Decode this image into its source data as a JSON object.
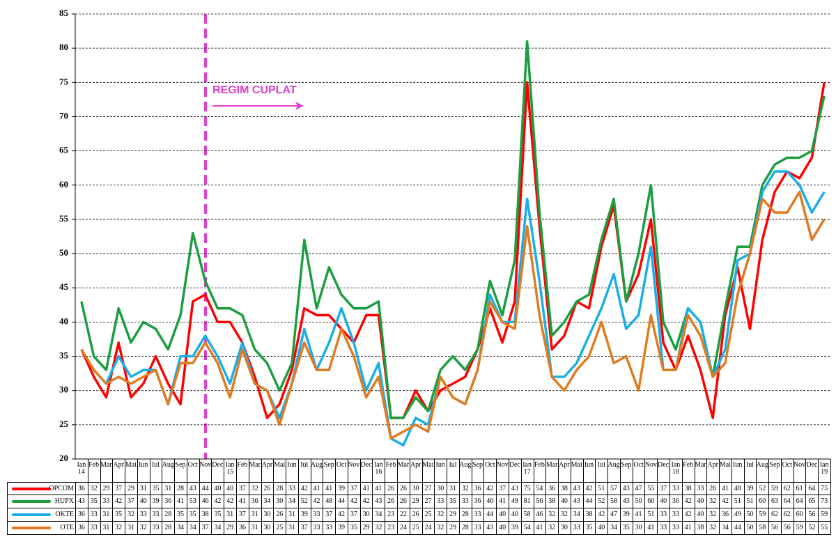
{
  "chart_data": {
    "type": "line",
    "annotations": [
      {
        "text": "REGIM CUPLAT"
      }
    ],
    "categories": [
      "Ian 14",
      "Feb",
      "Mar",
      "Apr",
      "Mai",
      "Iun",
      "Iul",
      "Aug",
      "Sep",
      "Oct",
      "Nov",
      "Dec",
      "Ian 15",
      "Feb",
      "Mar",
      "Apr",
      "Mai",
      "Iun",
      "Iul",
      "Aug",
      "Sep",
      "Oct",
      "Nov",
      "Dec",
      "Ian 16",
      "Feb",
      "Mar",
      "Apr",
      "Mai",
      "Iun",
      "Iul",
      "Aug",
      "Sep",
      "Oct",
      "Nov",
      "Dec",
      "Ian 17",
      "Feb",
      "Mar",
      "Apr",
      "Mai",
      "Iun",
      "Iul",
      "Aug",
      "Sep",
      "Oct",
      "Nov",
      "Dec",
      "Ian 18",
      "Feb",
      "Mar",
      "Apr",
      "Mai",
      "Iun",
      "Iul",
      "Aug",
      "Sep",
      "Oct",
      "Nov",
      "Dec",
      "Ian 19"
    ],
    "series": [
      {
        "name": "OPCOM",
        "color": "#ff0000",
        "values": [
          36,
          32,
          29,
          37,
          29,
          31,
          35,
          31,
          28,
          43,
          44,
          40,
          40,
          37,
          32,
          26,
          28,
          33,
          42,
          41,
          41,
          39,
          37,
          41,
          41,
          26,
          26,
          30,
          27,
          30,
          31,
          32,
          36,
          42,
          37,
          43,
          75,
          54,
          36,
          38,
          43,
          42,
          51,
          57,
          43,
          47,
          55,
          37,
          33,
          38,
          33,
          26,
          41,
          48,
          39,
          52,
          59,
          62,
          61,
          64,
          75
        ]
      },
      {
        "name": "HUPX",
        "color": "#1a9e40",
        "values": [
          43,
          35,
          33,
          42,
          37,
          40,
          39,
          36,
          41,
          53,
          46,
          42,
          42,
          41,
          36,
          34,
          30,
          34,
          52,
          42,
          48,
          44,
          42,
          42,
          43,
          26,
          26,
          29,
          27,
          33,
          35,
          33,
          36,
          46,
          41,
          49,
          81,
          56,
          38,
          40,
          43,
          44,
          52,
          58,
          43,
          50,
          60,
          40,
          36,
          42,
          40,
          32,
          42,
          51,
          51,
          60,
          63,
          64,
          64,
          65,
          73
        ]
      },
      {
        "name": "OKTE",
        "color": "#1aaee8",
        "values": [
          36,
          33,
          31,
          35,
          32,
          33,
          33,
          28,
          35,
          35,
          38,
          35,
          31,
          37,
          31,
          30,
          26,
          31,
          39,
          33,
          37,
          42,
          37,
          30,
          34,
          23,
          22,
          26,
          25,
          32,
          29,
          28,
          33,
          44,
          40,
          40,
          58,
          46,
          32,
          32,
          34,
          38,
          42,
          47,
          39,
          41,
          51,
          33,
          33,
          42,
          40,
          32,
          36,
          49,
          50,
          59,
          62,
          62,
          60,
          56,
          59
        ]
      },
      {
        "name": "OTE",
        "color": "#e07b20",
        "values": [
          36,
          33,
          31,
          32,
          31,
          32,
          33,
          28,
          34,
          34,
          37,
          34,
          29,
          36,
          31,
          30,
          25,
          31,
          37,
          33,
          33,
          39,
          35,
          29,
          32,
          23,
          24,
          25,
          24,
          32,
          29,
          28,
          33,
          43,
          40,
          39,
          54,
          41,
          32,
          30,
          33,
          35,
          40,
          34,
          35,
          30,
          41,
          33,
          33,
          41,
          38,
          32,
          34,
          44,
          50,
          58,
          56,
          56,
          59,
          52,
          55
        ]
      }
    ],
    "ylim": [
      20,
      85
    ],
    "yticks": [
      20,
      25,
      30,
      35,
      40,
      45,
      50,
      55,
      60,
      65,
      70,
      75,
      80,
      85
    ],
    "grid": true
  }
}
